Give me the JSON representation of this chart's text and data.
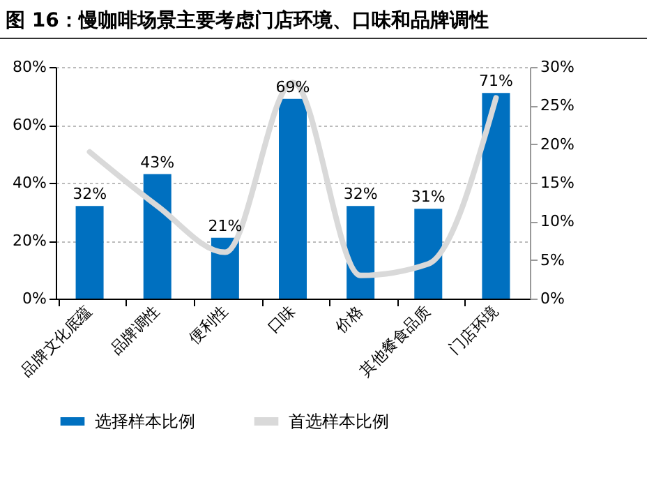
{
  "chart_data": {
    "type": "bar",
    "title": "图 16：慢咖啡场景主要考虑门店环境、口味和品牌调性",
    "categories": [
      "品牌文化底蕴",
      "品牌调性",
      "便利性",
      "口味",
      "价格",
      "其他餐食品质",
      "门店环境"
    ],
    "series": [
      {
        "name": "选择样本比例",
        "color": "#0070c0",
        "values": [
          32,
          43,
          21,
          69,
          32,
          31,
          71
        ],
        "value_labels": [
          "32%",
          "43%",
          "21%",
          "69%",
          "32%",
          "31%",
          "71%"
        ]
      },
      {
        "name": "首选样本比例",
        "type": "line",
        "axis": "y2",
        "color": "#d9d9d9",
        "values": [
          19,
          12,
          6,
          28,
          3,
          4.5,
          26
        ]
      }
    ],
    "ylim": [
      0,
      80
    ],
    "yticks": [
      {
        "value": 0,
        "label": "0%"
      },
      {
        "value": 20,
        "label": "20%"
      },
      {
        "value": 40,
        "label": "40%"
      },
      {
        "value": 60,
        "label": "60%"
      },
      {
        "value": 80,
        "label": "80%"
      }
    ],
    "y2lim": [
      0,
      30
    ],
    "y2ticks": [
      {
        "value": 0,
        "label": "0%"
      },
      {
        "value": 5,
        "label": "5%"
      },
      {
        "value": 10,
        "label": "10%"
      },
      {
        "value": 15,
        "label": "15%"
      },
      {
        "value": 20,
        "label": "20%"
      },
      {
        "value": 25,
        "label": "25%"
      },
      {
        "value": 30,
        "label": "30%"
      }
    ],
    "grid": "y",
    "legend": "bottom",
    "marker": "none",
    "line_style": "solid"
  }
}
